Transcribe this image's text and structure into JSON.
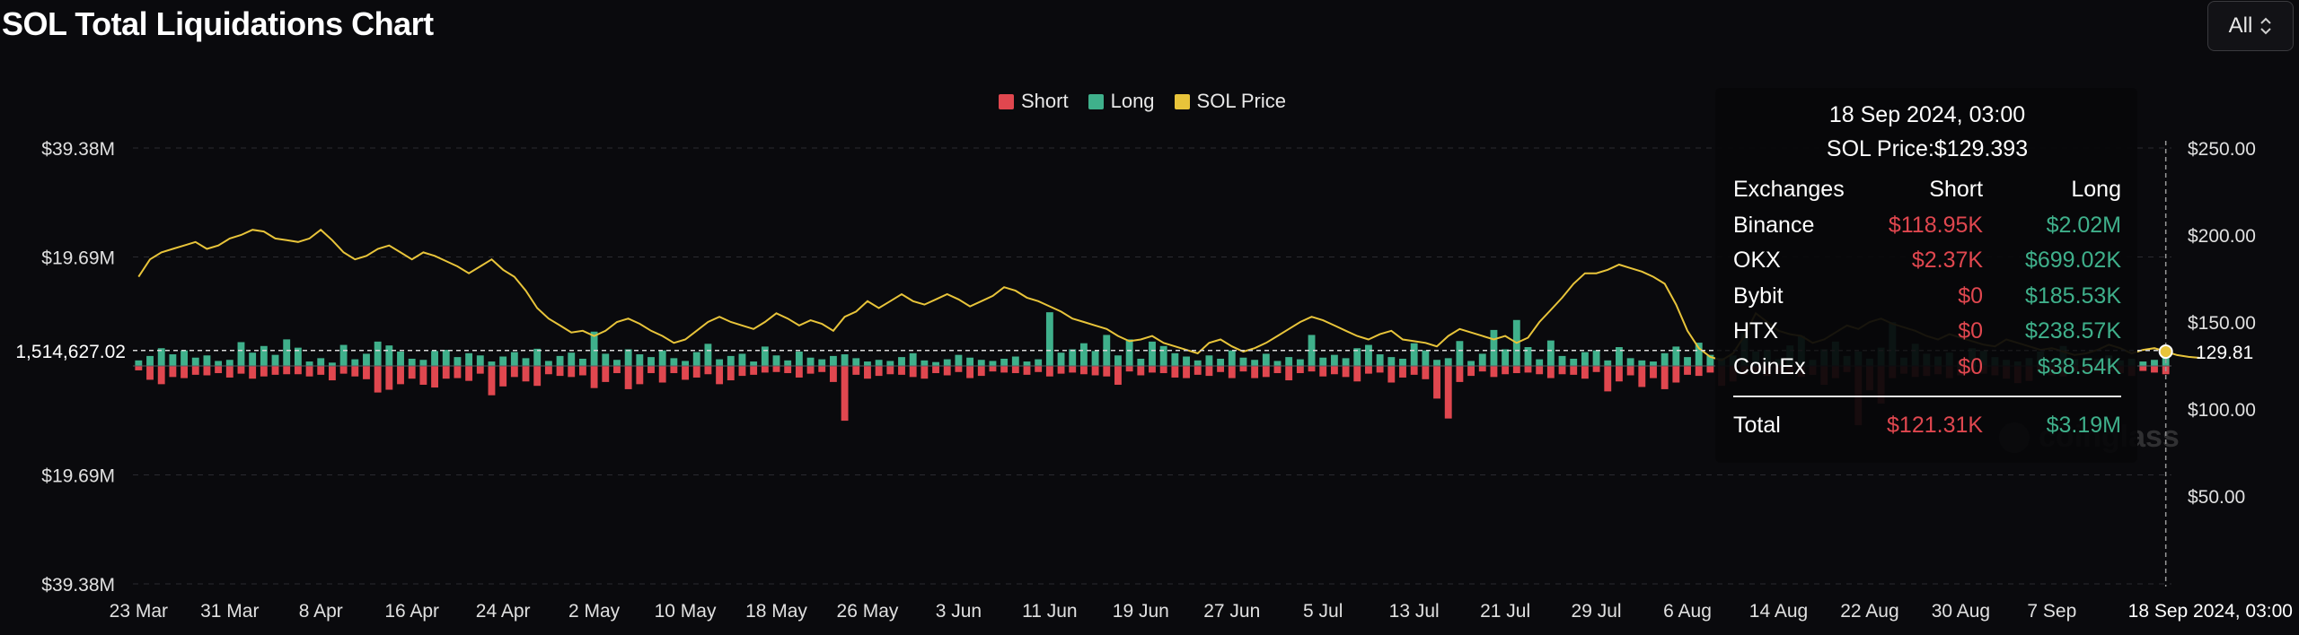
{
  "title": "SOL Total Liquidations Chart",
  "range_select": {
    "value": "All"
  },
  "legend": [
    {
      "label": "Short",
      "color": "#e0474f"
    },
    {
      "label": "Long",
      "color": "#3fb08b"
    },
    {
      "label": "SOL Price",
      "color": "#e8c43a"
    }
  ],
  "tooltip": {
    "date": "18 Sep 2024, 03:00",
    "price": "SOL Price:$129.393",
    "headers": [
      "Exchanges",
      "Short",
      "Long"
    ],
    "rows": [
      {
        "exchange": "Binance",
        "short": "$118.95K",
        "long": "$2.02M"
      },
      {
        "exchange": "OKX",
        "short": "$2.37K",
        "long": "$699.02K"
      },
      {
        "exchange": "Bybit",
        "short": "$0",
        "long": "$185.53K"
      },
      {
        "exchange": "HTX",
        "short": "$0",
        "long": "$238.57K"
      },
      {
        "exchange": "CoinEx",
        "short": "$0",
        "long": "$38.54K"
      }
    ],
    "total": {
      "label": "Total",
      "short": "$121.31K",
      "long": "$3.19M"
    }
  },
  "watermark": "coinglass",
  "chart_data": {
    "type": "bar",
    "title": "SOL Total Liquidations Chart",
    "crosshair": {
      "left_label": "1,514,627.02",
      "right_label": "129.81",
      "x_label": "18 Sep 2024, 03:00"
    },
    "left_axis": {
      "ticks": [
        "$39.38M",
        "$19.69M",
        "",
        "$19.69M",
        "$39.38M"
      ],
      "ylim": [
        -39.38,
        39.38
      ],
      "unit": "$M"
    },
    "right_axis": {
      "ticks": [
        "$250.00",
        "$200.00",
        "$150.00",
        "$100.00",
        "$50.00"
      ],
      "ylim": [
        -2.0,
        250
      ],
      "unit": "$"
    },
    "x_ticks": [
      "23 Mar",
      "31 Mar",
      "8 Apr",
      "16 Apr",
      "24 Apr",
      "2 May",
      "10 May",
      "18 May",
      "26 May",
      "3 Jun",
      "11 Jun",
      "19 Jun",
      "27 Jun",
      "5 Jul",
      "13 Jul",
      "21 Jul",
      "29 Jul",
      "6 Aug",
      "14 Aug",
      "22 Aug",
      "30 Aug",
      "7 Sep"
    ],
    "series": [
      {
        "name": "Long",
        "color": "#3fb08b",
        "values": [
          1.0,
          1.8,
          3.2,
          2.1,
          2.8,
          1.5,
          1.9,
          0.9,
          1.1,
          4.3,
          2.4,
          3.6,
          2.0,
          4.8,
          3.3,
          0.8,
          1.4,
          0.6,
          3.8,
          1.2,
          2.2,
          4.4,
          3.7,
          2.6,
          1.3,
          1.1,
          2.7,
          2.9,
          1.6,
          2.3,
          1.9,
          0.8,
          1.7,
          2.5,
          1.4,
          3.1,
          0.9,
          1.8,
          2.4,
          1.3,
          6.2,
          2.2,
          1.1,
          3.0,
          2.1,
          1.6,
          2.8,
          1.4,
          0.9,
          2.5,
          4.0,
          1.2,
          1.8,
          2.2,
          0.8,
          3.5,
          1.9,
          1.0,
          2.6,
          1.5,
          1.2,
          1.8,
          2.1,
          1.4,
          0.8,
          1.1,
          0.9,
          1.6,
          2.3,
          1.0,
          0.7,
          1.2,
          2.0,
          1.5,
          1.1,
          0.9,
          1.3,
          1.7,
          0.8,
          1.2,
          9.7,
          2.4,
          3.0,
          4.1,
          2.7,
          5.6,
          1.9,
          4.8,
          1.3,
          4.4,
          3.6,
          2.3,
          1.7,
          1.0,
          1.9,
          1.3,
          2.8,
          1.5,
          1.1,
          2.2,
          0.9,
          1.6,
          1.2,
          5.6,
          1.5,
          2.0,
          1.4,
          3.2,
          3.8,
          2.1,
          1.6,
          1.3,
          4.1,
          2.8,
          1.1,
          1.4,
          4.5,
          0.9,
          2.2,
          6.5,
          3.0,
          8.3,
          3.4,
          1.2,
          4.6,
          1.8,
          1.3,
          2.5,
          2.8,
          1.0,
          3.4,
          1.4,
          1.0,
          0.8,
          2.3,
          3.5,
          1.6,
          4.2,
          2.0,
          1.4,
          1.9,
          5.9,
          2.6,
          2.9,
          1.2,
          3.7,
          5.4,
          1.1,
          3.0,
          4.4,
          1.8,
          2.6,
          1.3,
          3.3,
          7.9,
          1.5,
          4.0,
          2.2,
          1.7,
          2.4,
          0.9,
          3.2,
          2.7,
          1.6,
          1.1,
          0.8,
          1.4,
          2.6,
          1.0,
          3.6,
          1.2,
          0.7,
          1.2,
          1.9,
          1.0,
          1.3,
          0.8,
          1.1,
          3.19
        ]
      },
      {
        "name": "Short",
        "color": "#e0474f",
        "values": [
          -0.8,
          -2.5,
          -3.3,
          -2.0,
          -2.2,
          -1.6,
          -1.7,
          -1.3,
          -2.1,
          -1.4,
          -2.3,
          -1.9,
          -1.6,
          -1.5,
          -1.5,
          -1.9,
          -1.6,
          -2.6,
          -1.4,
          -1.9,
          -2.4,
          -4.8,
          -4.3,
          -3.3,
          -2.3,
          -3.4,
          -3.9,
          -2.3,
          -2.2,
          -2.7,
          -1.4,
          -5.3,
          -3.7,
          -2.0,
          -2.8,
          -3.6,
          -1.5,
          -1.8,
          -2.0,
          -1.7,
          -4.0,
          -2.9,
          -1.3,
          -4.2,
          -3.3,
          -1.3,
          -3.0,
          -1.3,
          -2.5,
          -2.1,
          -1.5,
          -3.3,
          -2.6,
          -1.8,
          -1.6,
          -1.2,
          -1.1,
          -1.3,
          -2.1,
          -1.4,
          -1.1,
          -2.9,
          -9.9,
          -1.6,
          -2.3,
          -1.8,
          -1.5,
          -1.6,
          -2.0,
          -2.3,
          -1.3,
          -1.7,
          -1.1,
          -2.2,
          -1.8,
          -1.0,
          -1.2,
          -1.3,
          -1.6,
          -1.1,
          -1.9,
          -1.4,
          -1.2,
          -1.5,
          -1.7,
          -1.9,
          -3.4,
          -1.0,
          -1.7,
          -1.2,
          -1.3,
          -2.1,
          -2.2,
          -1.6,
          -1.8,
          -1.1,
          -2.2,
          -1.0,
          -2.2,
          -2.0,
          -1.3,
          -2.6,
          -1.3,
          -1.0,
          -1.9,
          -1.5,
          -2.0,
          -2.8,
          -1.4,
          -1.2,
          -3.0,
          -2.1,
          -1.6,
          -2.4,
          -5.9,
          -9.5,
          -2.9,
          -1.8,
          -1.0,
          -2.0,
          -1.5,
          -1.3,
          -1.2,
          -1.5,
          -2.2,
          -1.5,
          -1.6,
          -2.3,
          -1.1,
          -4.6,
          -2.8,
          -1.7,
          -3.8,
          -2.2,
          -4.2,
          -3.0,
          -1.6,
          -1.8,
          -1.2,
          -3.6,
          -2.8,
          -1.6,
          -1.3,
          -1.8,
          -1.4,
          -1.5,
          -2.0,
          -1.6,
          -3.4,
          -2.2,
          -1.1,
          -10.7,
          -4.4,
          -6.8,
          -2.2,
          -1.4,
          -2.0,
          -1.8,
          -1.5,
          -2.2,
          -1.7,
          -1.2,
          -1.4,
          -1.7,
          -2.3,
          -3.1,
          -2.7,
          -1.2,
          -1.7,
          -1.9,
          -1.0,
          -1.4,
          -1.1,
          -1.0,
          -1.3,
          -1.8,
          -0.9,
          -1.2,
          -1.5,
          -1.4,
          -1.1,
          -1.6,
          -0.12
        ]
      },
      {
        "name": "SOL Price",
        "color": "#e8c43a",
        "values": [
          176,
          186,
          190,
          192,
          194,
          196,
          192,
          194,
          198,
          200,
          203,
          202,
          198,
          197,
          196,
          198,
          203,
          197,
          190,
          186,
          188,
          192,
          194,
          190,
          186,
          190,
          188,
          185,
          182,
          178,
          182,
          186,
          180,
          176,
          168,
          158,
          152,
          148,
          144,
          145,
          142,
          145,
          150,
          152,
          149,
          145,
          142,
          138,
          140,
          145,
          150,
          153,
          150,
          148,
          146,
          150,
          155,
          152,
          148,
          151,
          149,
          145,
          153,
          156,
          162,
          158,
          162,
          166,
          162,
          160,
          163,
          166,
          163,
          159,
          162,
          165,
          170,
          168,
          164,
          162,
          159,
          156,
          152,
          150,
          148,
          146,
          142,
          139,
          140,
          142,
          138,
          136,
          134,
          132,
          138,
          140,
          136,
          133,
          135,
          138,
          142,
          146,
          150,
          153,
          151,
          148,
          145,
          142,
          140,
          143,
          145,
          140,
          139,
          138,
          136,
          142,
          146,
          144,
          142,
          140,
          142,
          138,
          141,
          150,
          157,
          164,
          172,
          178,
          178,
          180,
          183,
          181,
          179,
          176,
          172,
          160,
          145,
          135,
          130,
          128,
          132,
          142,
          155,
          150,
          145,
          143,
          142,
          138,
          140,
          144,
          148,
          146,
          150,
          152,
          149,
          147,
          145,
          142,
          140,
          143,
          141,
          139,
          137,
          136,
          140,
          138,
          136,
          134,
          135,
          133,
          131,
          132,
          134,
          137,
          135,
          132,
          134,
          135,
          133,
          131,
          130,
          129.39
        ]
      }
    ]
  }
}
